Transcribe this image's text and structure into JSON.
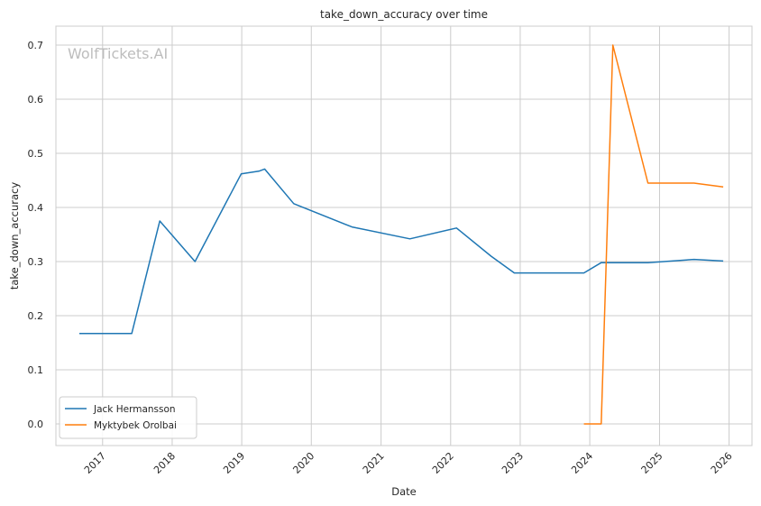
{
  "chart_data": {
    "type": "line",
    "title": "take_down_accuracy over time",
    "xlabel": "Date",
    "ylabel": "take_down_accuracy",
    "watermark": "WolfTickets.AI",
    "xlim": [
      "2016-05-01",
      "2026-05-01"
    ],
    "ylim": [
      -0.04,
      0.735
    ],
    "x_ticks": [
      "2017",
      "2018",
      "2019",
      "2020",
      "2021",
      "2022",
      "2023",
      "2024",
      "2025",
      "2026"
    ],
    "y_ticks": [
      "0.0",
      "0.1",
      "0.2",
      "0.3",
      "0.4",
      "0.5",
      "0.6",
      "0.7"
    ],
    "grid": true,
    "legend_position": "lower-left",
    "series": [
      {
        "name": "Jack Hermansson",
        "color": "#1f77b4",
        "points": [
          [
            "2016-09-01",
            0.167
          ],
          [
            "2017-06-03",
            0.167
          ],
          [
            "2017-08-26",
            0.286
          ],
          [
            "2017-10-28",
            0.375
          ],
          [
            "2018-05-01",
            0.3
          ],
          [
            "2018-12-29",
            0.462
          ],
          [
            "2019-04-01",
            0.467
          ],
          [
            "2019-05-01",
            0.471
          ],
          [
            "2019-10-01",
            0.407
          ],
          [
            "2020-08-01",
            0.364
          ],
          [
            "2021-06-01",
            0.342
          ],
          [
            "2022-02-01",
            0.362
          ],
          [
            "2022-08-01",
            0.31
          ],
          [
            "2022-12-01",
            0.279
          ],
          [
            "2023-12-01",
            0.279
          ],
          [
            "2024-03-01",
            0.298
          ],
          [
            "2024-11-01",
            0.298
          ],
          [
            "2025-07-01",
            0.304
          ],
          [
            "2025-12-01",
            0.301
          ]
        ]
      },
      {
        "name": "Myktybek Orolbai",
        "color": "#ff7f0e",
        "points": [
          [
            "2023-12-01",
            0.0
          ],
          [
            "2024-03-01",
            0.0
          ],
          [
            "2024-05-01",
            0.7
          ],
          [
            "2024-11-01",
            0.445
          ],
          [
            "2025-07-01",
            0.445
          ],
          [
            "2025-12-01",
            0.438
          ]
        ]
      }
    ]
  }
}
